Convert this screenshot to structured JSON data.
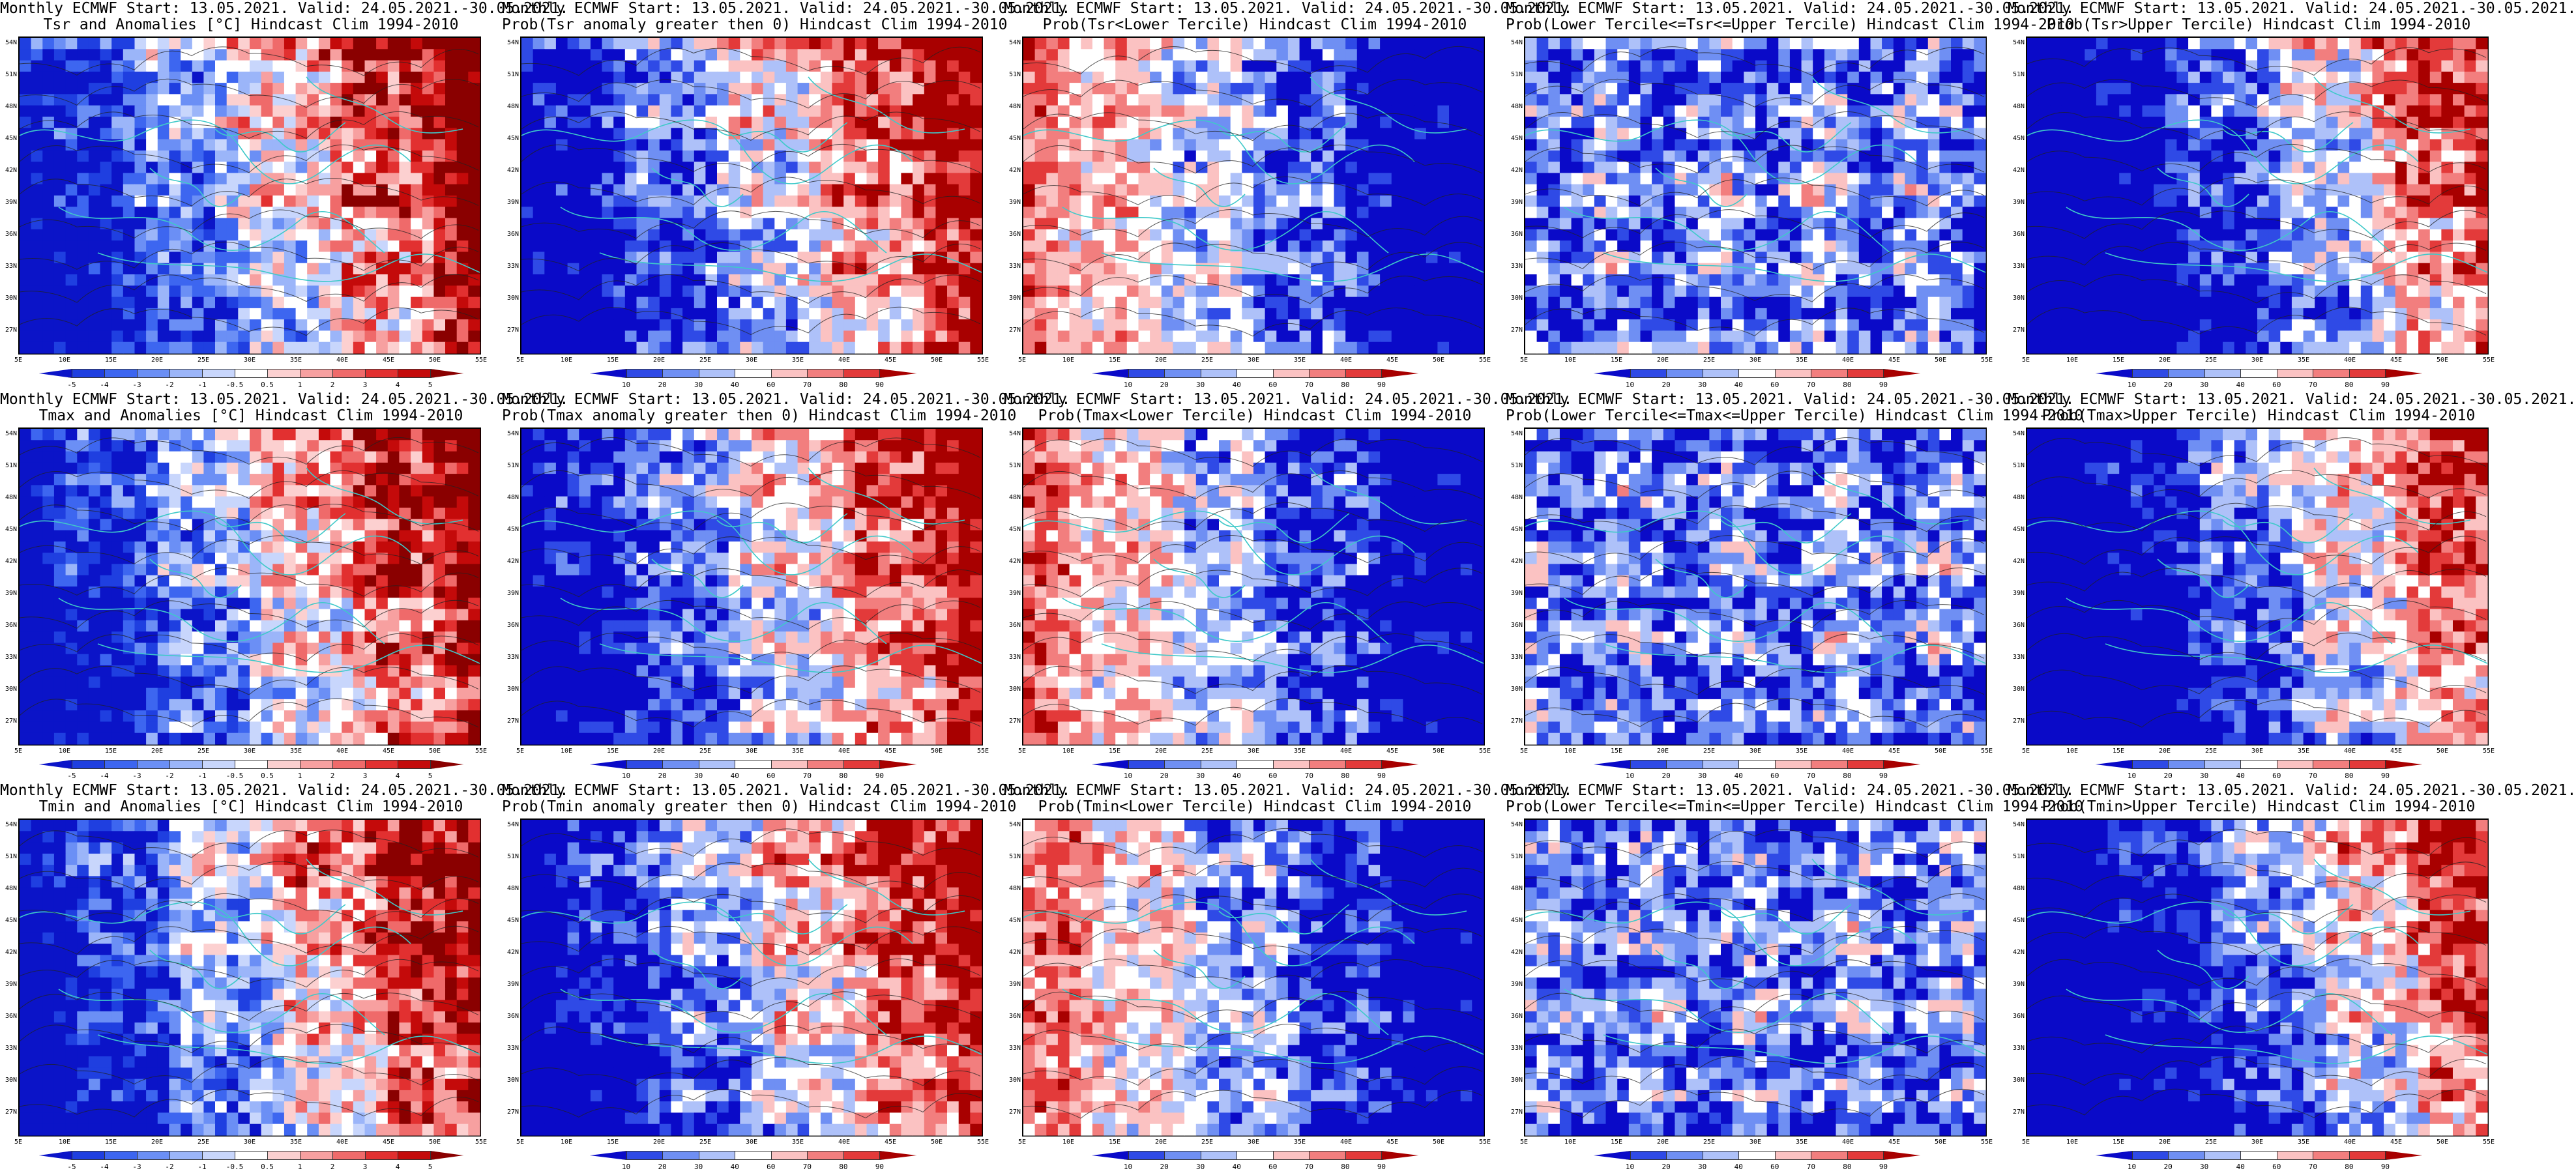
{
  "figure": {
    "panels": [
      {
        "title1": "Monthly ECMWF Start: 13.05.2021. Valid: 24.05.2021.-30.05.2021.",
        "title2": "Tsr and Anomalies [°C] Hindcast Clim 1994-2010",
        "scale": "anomaly",
        "pattern": "warm-east"
      },
      {
        "title1": "Monthly ECMWF Start: 13.05.2021. Valid: 24.05.2021.-30.05.2021.",
        "title2": "Prob(Tsr anomaly greater then 0) Hindcast Clim 1994-2010",
        "scale": "probability",
        "pattern": "warm-east"
      },
      {
        "title1": "Monthly ECMWF Start: 13.05.2021. Valid: 24.05.2021.-30.05.2021.",
        "title2": "Prob(Tsr<Lower Tercile) Hindcast Clim 1994-2010",
        "scale": "probability",
        "pattern": "cold-east"
      },
      {
        "title1": "Monthly ECMWF Start: 13.05.2021. Valid: 24.05.2021.-30.05.2021.",
        "title2": "Prob(Lower Tercile<=Tsr<=Upper Tercile) Hindcast Clim 1994-2010",
        "scale": "probability",
        "pattern": "mostly-blue"
      },
      {
        "title1": "Monthly ECMWF Start: 13.05.2021. Valid: 24.05.2021.-30.05.2021.",
        "title2": "Prob(Tsr>Upper Tercile) Hindcast Clim 1994-2010",
        "scale": "probability",
        "pattern": "warm-east-blue-west"
      },
      {
        "title1": "Monthly ECMWF Start: 13.05.2021. Valid: 24.05.2021.-30.05.2021.",
        "title2": "Tmax and Anomalies [°C] Hindcast Clim 1994-2010",
        "scale": "anomaly",
        "pattern": "warm-east"
      },
      {
        "title1": "Monthly ECMWF Start: 13.05.2021. Valid: 24.05.2021.-30.05.2021.",
        "title2": "Prob(Tmax anomaly greater then 0) Hindcast Clim 1994-2010",
        "scale": "probability",
        "pattern": "warm-east"
      },
      {
        "title1": "Monthly ECMWF Start: 13.05.2021. Valid: 24.05.2021.-30.05.2021.",
        "title2": "Prob(Tmax<Lower Tercile) Hindcast Clim 1994-2010",
        "scale": "probability",
        "pattern": "cold-east"
      },
      {
        "title1": "Monthly ECMWF Start: 13.05.2021. Valid: 24.05.2021.-30.05.2021.",
        "title2": "Prob(Lower Tercile<=Tmax<=Upper Tercile) Hindcast Clim 1994-2010",
        "scale": "probability",
        "pattern": "mostly-blue"
      },
      {
        "title1": "Monthly ECMWF Start: 13.05.2021. Valid: 24.05.2021.-30.05.2021.",
        "title2": "Prob(Tmax>Upper Tercile) Hindcast Clim 1994-2010",
        "scale": "probability",
        "pattern": "warm-east-blue-west"
      },
      {
        "title1": "Monthly ECMWF Start: 13.05.2021. Valid: 24.05.2021.-30.05.2021.",
        "title2": "Tmin and Anomalies [°C] Hindcast Clim 1994-2010",
        "scale": "anomaly",
        "pattern": "warm-east"
      },
      {
        "title1": "Monthly ECMWF Start: 13.05.2021. Valid: 24.05.2021.-30.05.2021.",
        "title2": "Prob(Tmin anomaly greater then 0) Hindcast Clim 1994-2010",
        "scale": "probability",
        "pattern": "warm-east"
      },
      {
        "title1": "Monthly ECMWF Start: 13.05.2021. Valid: 24.05.2021.-30.05.2021.",
        "title2": "Prob(Tmin<Lower Tercile) Hindcast Clim 1994-2010",
        "scale": "probability",
        "pattern": "cold-east"
      },
      {
        "title1": "Monthly ECMWF Start: 13.05.2021. Valid: 24.05.2021.-30.05.2021.",
        "title2": "Prob(Lower Tercile<=Tmin<=Upper Tercile) Hindcast Clim 1994-2010",
        "scale": "probability",
        "pattern": "mostly-blue"
      },
      {
        "title1": "Monthly ECMWF Start: 13.05.2021. Valid: 24.05.2021.-30.05.2021.",
        "title2": "Prob(Tmin>Upper Tercile) Hindcast Clim 1994-2010",
        "scale": "probability",
        "pattern": "warm-east-blue-west"
      }
    ],
    "axes": {
      "lat_labels": [
        "54N",
        "51N",
        "48N",
        "45N",
        "42N",
        "39N",
        "36N",
        "33N",
        "30N",
        "27N"
      ],
      "lon_labels": [
        "5E",
        "10E",
        "15E",
        "20E",
        "25E",
        "30E",
        "35E",
        "40E",
        "45E",
        "50E",
        "55E"
      ]
    },
    "colorbars": {
      "anomaly": {
        "labels": [
          "-5",
          "-4",
          "-3",
          "-2",
          "-1",
          "-0.5",
          "0.5",
          "1",
          "2",
          "3",
          "4",
          "5"
        ],
        "colors": [
          "#0b14c8",
          "#1f3fe0",
          "#3d66f0",
          "#6b8ff5",
          "#9bb5f9",
          "#c8d6fc",
          "#ffffff",
          "#fcd0d0",
          "#f7a0a0",
          "#ef6a6a",
          "#e23030",
          "#c40a0a",
          "#8a0000"
        ]
      },
      "probability": {
        "labels": [
          "10",
          "20",
          "30",
          "40",
          "60",
          "70",
          "80",
          "90"
        ],
        "colors": [
          "#0a0ac8",
          "#2f4ae6",
          "#6f8ff3",
          "#aec1f9",
          "#ffffff",
          "#fbc2c2",
          "#f27e7e",
          "#e33a3a",
          "#a80000"
        ]
      }
    },
    "map_colors": {
      "coast": "#3fc9c9",
      "contour": "#222222"
    }
  }
}
